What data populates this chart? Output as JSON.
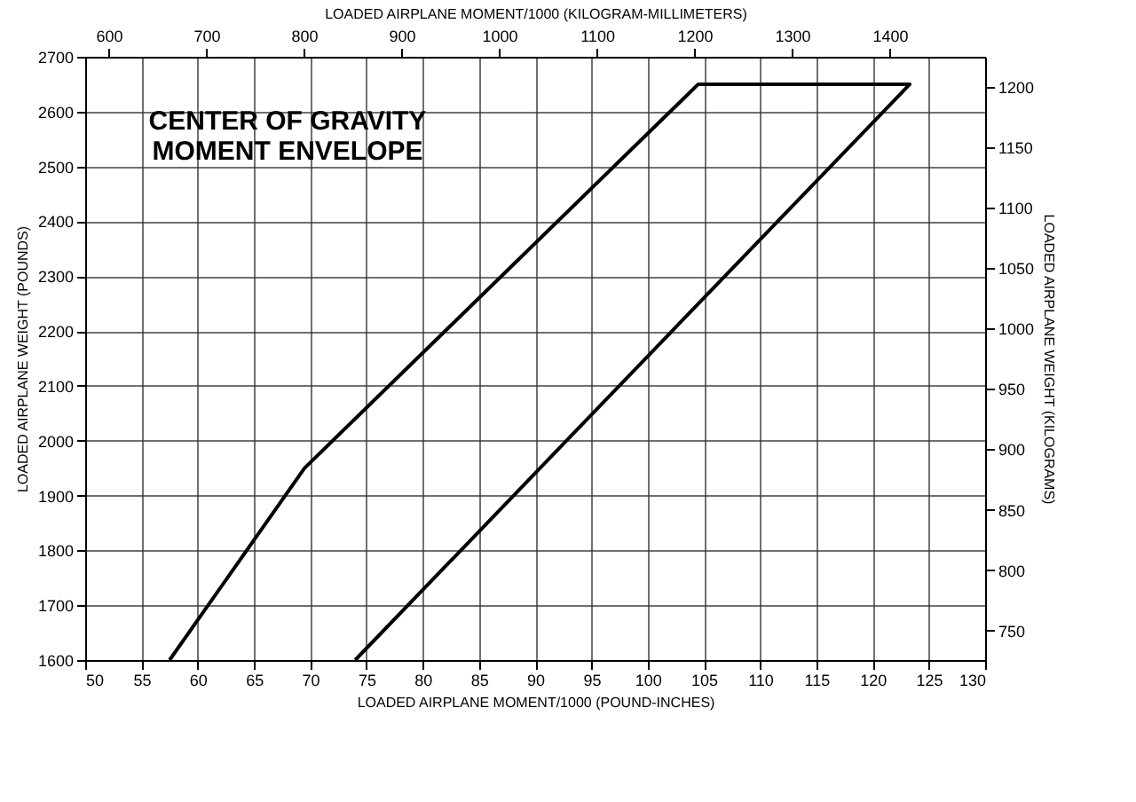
{
  "chart_data": {
    "type": "line",
    "title": "CENTER OF GRAVITY MOMENT ENVELOPE",
    "xlabel": "LOADED AIRPLANE MOMENT/1000 (POUND-INCHES)",
    "ylabel": "LOADED AIRPLANE WEIGHT (POUNDS)",
    "x2label": "LOADED AIRPLANE MOMENT/1000 (KILOGRAM-MILLIMETERS)",
    "y2label": "LOADED AIRPLANE WEIGHT (KILOGRAMS)",
    "series": [
      {
        "color": "#000000",
        "x": [
          57.5,
          69.5,
          104.5,
          123.3,
          74
        ],
        "values": [
          1600,
          1950,
          2650,
          2650,
          1600
        ]
      }
    ],
    "xlim": [
      50,
      130
    ],
    "xticks": [
      50,
      55,
      60,
      65,
      70,
      75,
      80,
      85,
      90,
      95,
      100,
      105,
      110,
      115,
      120,
      125,
      130
    ],
    "ylim": [
      1600,
      2700
    ],
    "yticks": [
      1600,
      1700,
      1800,
      1900,
      2000,
      2100,
      2200,
      2300,
      2400,
      2500,
      2600,
      2700
    ],
    "x2lim": [
      576,
      1497.6
    ],
    "x2ticks": [
      600,
      700,
      800,
      900,
      1000,
      1100,
      1200,
      1300,
      1400
    ],
    "y2lim": [
      725.7,
      1224.7
    ],
    "y2ticks": [
      750,
      800,
      850,
      900,
      950,
      1000,
      1050,
      1100,
      1150,
      1200
    ],
    "grid": true,
    "marker": "none",
    "line_style": "solid"
  }
}
